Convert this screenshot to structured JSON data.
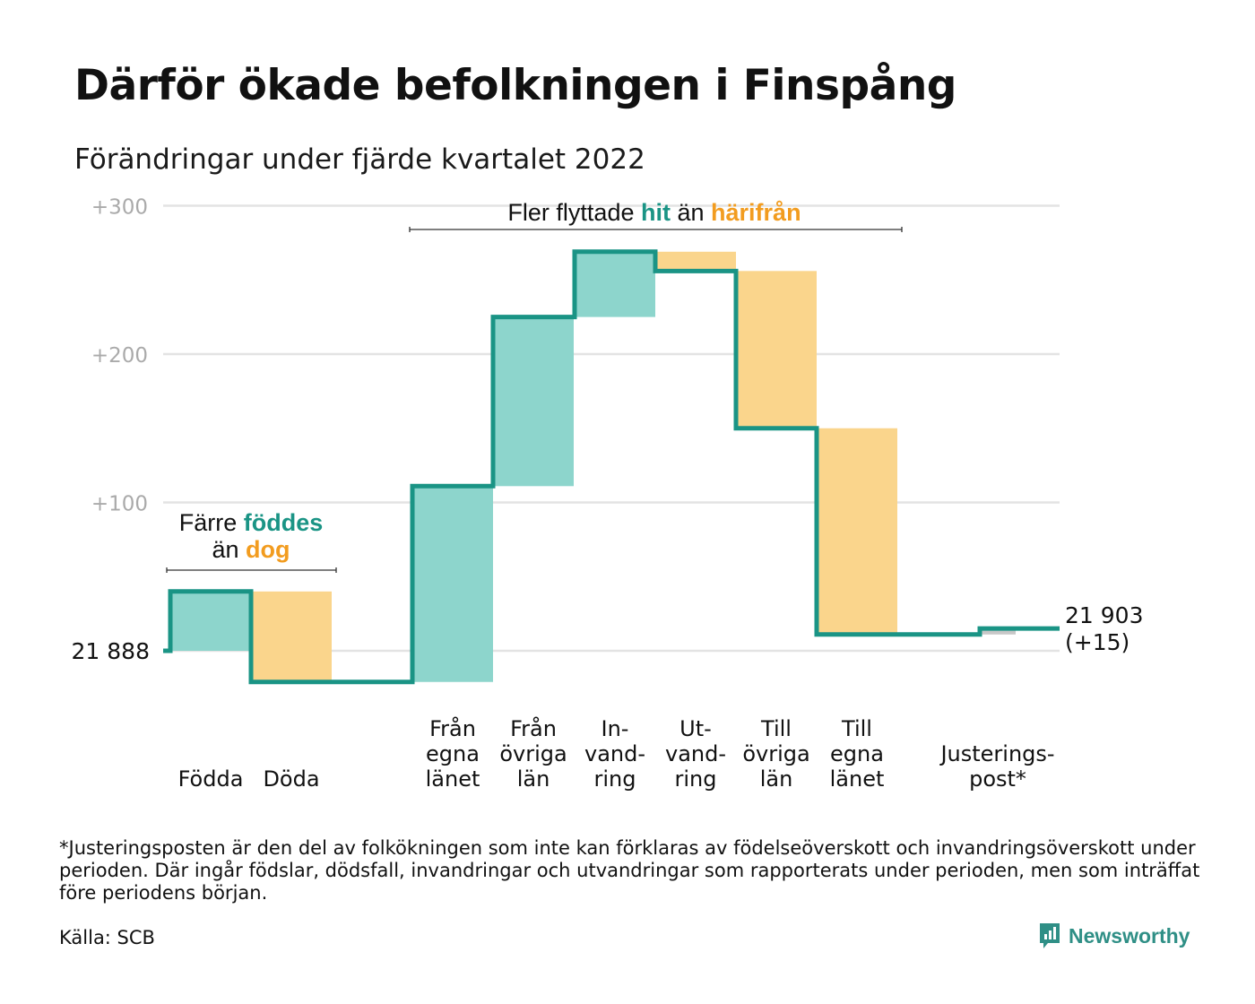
{
  "title": "Därför ökade befolkningen i Finspång",
  "subtitle": "Förändringar under fjärde kvartalet 2022",
  "colors": {
    "increase": "#8dd5cc",
    "decrease": "#fad58c",
    "line": "#1a9485",
    "adjustment": "#c7c7c7",
    "grid": "#e3e3e3",
    "tick": "#aaaaaa",
    "accent_green": "#1a9485",
    "accent_orange": "#f29c1f"
  },
  "chart_data": {
    "type": "waterfall",
    "start": {
      "label": "21 888",
      "value": 0
    },
    "end": {
      "label_line1": "21 903",
      "label_line2": "(+15)",
      "value": 15
    },
    "y_ticks": [
      {
        "value": 100,
        "label": "+100"
      },
      {
        "value": 200,
        "label": "+200"
      },
      {
        "value": 300,
        "label": "+300"
      }
    ],
    "ylim": [
      -30,
      300
    ],
    "steps": [
      {
        "label": [
          "Födda"
        ],
        "delta": 40,
        "kind": "increase"
      },
      {
        "label": [
          "Döda"
        ],
        "delta": -61,
        "kind": "decrease"
      },
      {
        "label": [
          "Från",
          "egna",
          "länet"
        ],
        "delta": 132,
        "kind": "increase"
      },
      {
        "label": [
          "Från",
          "övriga",
          "län"
        ],
        "delta": 114,
        "kind": "increase"
      },
      {
        "label": [
          "In-",
          "vand-",
          "ring"
        ],
        "delta": 44,
        "kind": "increase"
      },
      {
        "label": [
          "Ut-",
          "vand-",
          "ring"
        ],
        "delta": -13,
        "kind": "decrease"
      },
      {
        "label": [
          "Till",
          "övriga",
          "län"
        ],
        "delta": -106,
        "kind": "decrease"
      },
      {
        "label": [
          "Till",
          "egna",
          "länet"
        ],
        "delta": -139,
        "kind": "decrease"
      },
      {
        "label": [
          "Justerings-",
          "post*"
        ],
        "delta": 4,
        "kind": "adjustment"
      }
    ],
    "annotations": [
      {
        "name": "births-deaths",
        "lines": [
          [
            {
              "text": "Färre ",
              "style": "plain"
            },
            {
              "text": "föddes",
              "style": "green"
            }
          ],
          [
            {
              "text": "än ",
              "style": "plain"
            },
            {
              "text": "dog",
              "style": "orange"
            }
          ]
        ]
      },
      {
        "name": "migration",
        "lines": [
          [
            {
              "text": "Fler flyttade ",
              "style": "plain"
            },
            {
              "text": "hit",
              "style": "green"
            },
            {
              "text": " än ",
              "style": "plain"
            },
            {
              "text": "härifrån",
              "style": "orange"
            }
          ]
        ]
      }
    ]
  },
  "footnote": "*Justeringsposten är den del av folkökningen som inte kan förklaras av födelseöverskott och invandringsöverskott under perioden. Där ingår födslar, dödsfall, invandringar och utvandringar som rapporterats under perioden, men som inträffat före periodens början.",
  "source": "Källa: SCB",
  "brand": {
    "name": "Newsworthy",
    "icon": "newsworthy-logo-icon"
  }
}
